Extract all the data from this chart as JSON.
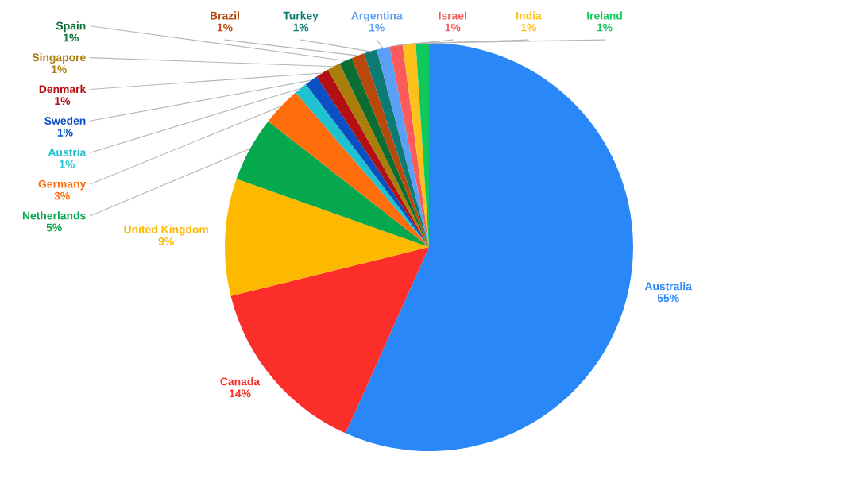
{
  "chart_data": {
    "type": "pie",
    "categories": [
      "Australia",
      "Canada",
      "United Kingdom",
      "Netherlands",
      "Germany",
      "Austria",
      "Sweden",
      "Denmark",
      "Singapore",
      "Spain",
      "Brazil",
      "Turkey",
      "Argentina",
      "Israel",
      "India",
      "Ireland"
    ],
    "values": [
      55,
      14,
      9,
      5,
      3,
      1,
      1,
      1,
      1,
      1,
      1,
      1,
      1,
      1,
      1,
      1
    ],
    "value_labels": [
      "55%",
      "14%",
      "9%",
      "5%",
      "3%",
      "1%",
      "1%",
      "1%",
      "1%",
      "1%",
      "1%",
      "1%",
      "1%",
      "1%",
      "1%",
      "1%"
    ],
    "colors": [
      "#2a87f8",
      "#fb2e2a",
      "#fdb800",
      "#05a84c",
      "#ff6d0d",
      "#1fc2cf",
      "#0b4fc2",
      "#b40f12",
      "#ab7d09",
      "#0a6e33",
      "#b8480c",
      "#0b7b73",
      "#5aa0f6",
      "#f95b5b",
      "#fec11c",
      "#10c95c"
    ]
  }
}
